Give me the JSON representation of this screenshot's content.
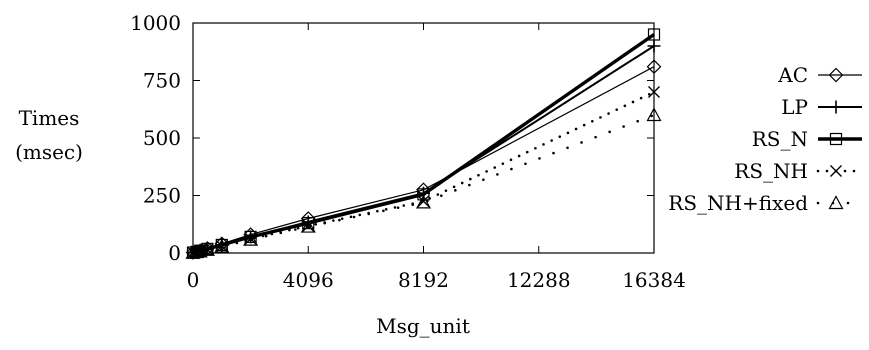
{
  "chart_data": {
    "type": "line",
    "title": "",
    "xlabel": "Msg_unit",
    "ylabel_lines": [
      "Times",
      "(msec)"
    ],
    "xlim": [
      0,
      16384
    ],
    "ylim": [
      0,
      1000
    ],
    "x_ticks": [
      0,
      4096,
      8192,
      12288,
      16384
    ],
    "y_ticks": [
      0,
      250,
      500,
      750,
      1000
    ],
    "grid": false,
    "legend_position": "right",
    "x": [
      0,
      128,
      256,
      512,
      1024,
      2048,
      4096,
      8192,
      16384
    ],
    "series": [
      {
        "name": "AC",
        "marker": "diamond",
        "line": "thin-solid",
        "values": [
          2,
          5,
          10,
          20,
          40,
          80,
          150,
          275,
          810
        ]
      },
      {
        "name": "LP",
        "marker": "plus",
        "line": "solid",
        "values": [
          2,
          5,
          10,
          18,
          35,
          70,
          135,
          260,
          900
        ]
      },
      {
        "name": "RS_N",
        "marker": "square",
        "line": "thick-solid",
        "values": [
          2,
          5,
          10,
          18,
          35,
          70,
          130,
          255,
          950
        ]
      },
      {
        "name": "RS_NH",
        "marker": "cross",
        "line": "dotted",
        "values": [
          2,
          4,
          8,
          15,
          30,
          62,
          118,
          225,
          700
        ]
      },
      {
        "name": "RS_NH+fixed",
        "marker": "triangle",
        "line": "sparse-dotted",
        "values": [
          1,
          4,
          7,
          14,
          28,
          58,
          115,
          220,
          600
        ]
      }
    ]
  }
}
